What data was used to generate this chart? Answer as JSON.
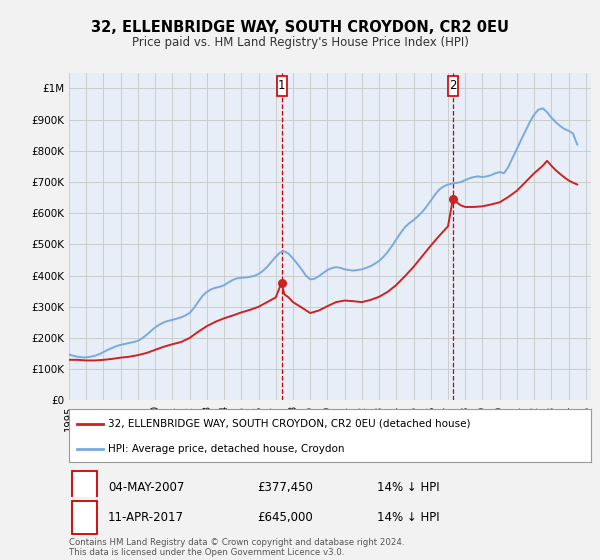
{
  "title1": "32, ELLENBRIDGE WAY, SOUTH CROYDON, CR2 0EU",
  "title2": "Price paid vs. HM Land Registry's House Price Index (HPI)",
  "ylabel_ticks": [
    "£0",
    "£100K",
    "£200K",
    "£300K",
    "£400K",
    "£500K",
    "£600K",
    "£700K",
    "£800K",
    "£900K",
    "£1M"
  ],
  "ytick_values": [
    0,
    100000,
    200000,
    300000,
    400000,
    500000,
    600000,
    700000,
    800000,
    900000,
    1000000
  ],
  "ylim": [
    0,
    1050000
  ],
  "xlim_start": 1995.0,
  "xlim_end": 2025.3,
  "background_color": "#f2f2f2",
  "plot_bg": "#e8eef8",
  "grid_color": "#cccccc",
  "hpi_color": "#7aaadd",
  "price_color": "#cc2222",
  "marker1_x": 2007.35,
  "marker1_y": 377450,
  "marker2_x": 2017.28,
  "marker2_y": 645000,
  "marker1_date": "04-MAY-2007",
  "marker1_price": "£377,450",
  "marker1_info": "14% ↓ HPI",
  "marker2_date": "11-APR-2017",
  "marker2_price": "£645,000",
  "marker2_info": "14% ↓ HPI",
  "legend_line1": "32, ELLENBRIDGE WAY, SOUTH CROYDON, CR2 0EU (detached house)",
  "legend_line2": "HPI: Average price, detached house, Croydon",
  "footer": "Contains HM Land Registry data © Crown copyright and database right 2024.\nThis data is licensed under the Open Government Licence v3.0.",
  "hpi_data": [
    [
      1995.0,
      147000
    ],
    [
      1995.25,
      143000
    ],
    [
      1995.5,
      140000
    ],
    [
      1995.75,
      138000
    ],
    [
      1996.0,
      138000
    ],
    [
      1996.25,
      140000
    ],
    [
      1996.5,
      143000
    ],
    [
      1996.75,
      148000
    ],
    [
      1997.0,
      155000
    ],
    [
      1997.25,
      162000
    ],
    [
      1997.5,
      168000
    ],
    [
      1997.75,
      174000
    ],
    [
      1998.0,
      178000
    ],
    [
      1998.25,
      181000
    ],
    [
      1998.5,
      184000
    ],
    [
      1998.75,
      187000
    ],
    [
      1999.0,
      191000
    ],
    [
      1999.25,
      199000
    ],
    [
      1999.5,
      210000
    ],
    [
      1999.75,
      222000
    ],
    [
      2000.0,
      234000
    ],
    [
      2000.25,
      243000
    ],
    [
      2000.5,
      250000
    ],
    [
      2000.75,
      255000
    ],
    [
      2001.0,
      258000
    ],
    [
      2001.25,
      262000
    ],
    [
      2001.5,
      266000
    ],
    [
      2001.75,
      272000
    ],
    [
      2002.0,
      280000
    ],
    [
      2002.25,
      296000
    ],
    [
      2002.5,
      316000
    ],
    [
      2002.75,
      335000
    ],
    [
      2003.0,
      348000
    ],
    [
      2003.25,
      356000
    ],
    [
      2003.5,
      361000
    ],
    [
      2003.75,
      364000
    ],
    [
      2004.0,
      369000
    ],
    [
      2004.25,
      378000
    ],
    [
      2004.5,
      386000
    ],
    [
      2004.75,
      391000
    ],
    [
      2005.0,
      393000
    ],
    [
      2005.25,
      394000
    ],
    [
      2005.5,
      396000
    ],
    [
      2005.75,
      399000
    ],
    [
      2006.0,
      405000
    ],
    [
      2006.25,
      415000
    ],
    [
      2006.5,
      428000
    ],
    [
      2006.75,
      444000
    ],
    [
      2007.0,
      460000
    ],
    [
      2007.25,
      474000
    ],
    [
      2007.5,
      478000
    ],
    [
      2007.75,
      470000
    ],
    [
      2008.0,
      455000
    ],
    [
      2008.25,
      438000
    ],
    [
      2008.5,
      420000
    ],
    [
      2008.75,
      400000
    ],
    [
      2009.0,
      388000
    ],
    [
      2009.25,
      390000
    ],
    [
      2009.5,
      398000
    ],
    [
      2009.75,
      408000
    ],
    [
      2010.0,
      418000
    ],
    [
      2010.25,
      424000
    ],
    [
      2010.5,
      427000
    ],
    [
      2010.75,
      425000
    ],
    [
      2011.0,
      420000
    ],
    [
      2011.25,
      418000
    ],
    [
      2011.5,
      416000
    ],
    [
      2011.75,
      418000
    ],
    [
      2012.0,
      420000
    ],
    [
      2012.25,
      425000
    ],
    [
      2012.5,
      430000
    ],
    [
      2012.75,
      438000
    ],
    [
      2013.0,
      447000
    ],
    [
      2013.25,
      460000
    ],
    [
      2013.5,
      476000
    ],
    [
      2013.75,
      495000
    ],
    [
      2014.0,
      516000
    ],
    [
      2014.25,
      537000
    ],
    [
      2014.5,
      555000
    ],
    [
      2014.75,
      568000
    ],
    [
      2015.0,
      578000
    ],
    [
      2015.25,
      590000
    ],
    [
      2015.5,
      604000
    ],
    [
      2015.75,
      621000
    ],
    [
      2016.0,
      640000
    ],
    [
      2016.25,
      660000
    ],
    [
      2016.5,
      676000
    ],
    [
      2016.75,
      686000
    ],
    [
      2017.0,
      692000
    ],
    [
      2017.25,
      695000
    ],
    [
      2017.5,
      697000
    ],
    [
      2017.75,
      700000
    ],
    [
      2018.0,
      706000
    ],
    [
      2018.25,
      712000
    ],
    [
      2018.5,
      716000
    ],
    [
      2018.75,
      718000
    ],
    [
      2019.0,
      716000
    ],
    [
      2019.25,
      718000
    ],
    [
      2019.5,
      722000
    ],
    [
      2019.75,
      728000
    ],
    [
      2020.0,
      732000
    ],
    [
      2020.25,
      728000
    ],
    [
      2020.5,
      748000
    ],
    [
      2020.75,
      778000
    ],
    [
      2021.0,
      806000
    ],
    [
      2021.25,
      836000
    ],
    [
      2021.5,
      864000
    ],
    [
      2021.75,
      892000
    ],
    [
      2022.0,
      916000
    ],
    [
      2022.25,
      932000
    ],
    [
      2022.5,
      936000
    ],
    [
      2022.75,
      924000
    ],
    [
      2023.0,
      906000
    ],
    [
      2023.25,
      892000
    ],
    [
      2023.5,
      880000
    ],
    [
      2023.75,
      870000
    ],
    [
      2024.0,
      864000
    ],
    [
      2024.25,
      856000
    ],
    [
      2024.5,
      820000
    ]
  ],
  "price_data": [
    [
      1995.0,
      130000
    ],
    [
      1995.5,
      130000
    ],
    [
      1996.0,
      128000
    ],
    [
      1996.5,
      128000
    ],
    [
      1997.0,
      130000
    ],
    [
      1997.5,
      133000
    ],
    [
      1998.0,
      137000
    ],
    [
      1998.5,
      140000
    ],
    [
      1999.0,
      145000
    ],
    [
      1999.5,
      152000
    ],
    [
      2000.0,
      162000
    ],
    [
      2000.5,
      172000
    ],
    [
      2001.0,
      180000
    ],
    [
      2001.5,
      187000
    ],
    [
      2002.0,
      200000
    ],
    [
      2002.5,
      220000
    ],
    [
      2003.0,
      238000
    ],
    [
      2003.5,
      252000
    ],
    [
      2004.0,
      263000
    ],
    [
      2004.5,
      272000
    ],
    [
      2005.0,
      282000
    ],
    [
      2005.5,
      290000
    ],
    [
      2006.0,
      300000
    ],
    [
      2006.5,
      315000
    ],
    [
      2007.0,
      330000
    ],
    [
      2007.34,
      377450
    ],
    [
      2007.5,
      340000
    ],
    [
      2007.75,
      330000
    ],
    [
      2008.0,
      315000
    ],
    [
      2008.5,
      298000
    ],
    [
      2009.0,
      280000
    ],
    [
      2009.5,
      288000
    ],
    [
      2010.0,
      302000
    ],
    [
      2010.5,
      315000
    ],
    [
      2011.0,
      320000
    ],
    [
      2011.5,
      318000
    ],
    [
      2012.0,
      315000
    ],
    [
      2012.5,
      322000
    ],
    [
      2013.0,
      332000
    ],
    [
      2013.5,
      348000
    ],
    [
      2014.0,
      370000
    ],
    [
      2014.5,
      398000
    ],
    [
      2015.0,
      428000
    ],
    [
      2015.5,
      462000
    ],
    [
      2016.0,
      496000
    ],
    [
      2016.5,
      528000
    ],
    [
      2017.0,
      558000
    ],
    [
      2017.28,
      645000
    ],
    [
      2017.5,
      635000
    ],
    [
      2017.75,
      625000
    ],
    [
      2018.0,
      620000
    ],
    [
      2018.5,
      620000
    ],
    [
      2019.0,
      622000
    ],
    [
      2019.5,
      628000
    ],
    [
      2020.0,
      635000
    ],
    [
      2020.5,
      652000
    ],
    [
      2021.0,
      672000
    ],
    [
      2021.5,
      700000
    ],
    [
      2022.0,
      728000
    ],
    [
      2022.5,
      752000
    ],
    [
      2022.75,
      768000
    ],
    [
      2023.0,
      752000
    ],
    [
      2023.25,
      738000
    ],
    [
      2023.5,
      726000
    ],
    [
      2023.75,
      715000
    ],
    [
      2024.0,
      705000
    ],
    [
      2024.25,
      698000
    ],
    [
      2024.5,
      692000
    ]
  ]
}
